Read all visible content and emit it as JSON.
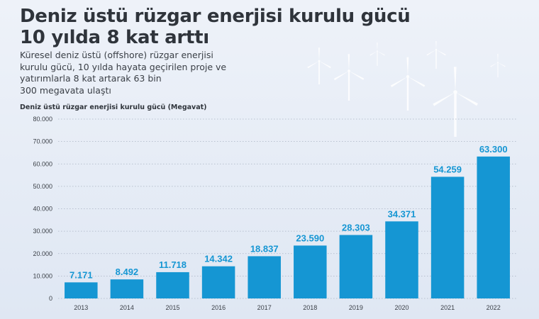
{
  "header": {
    "title_line1": "Deniz üstü rüzgar enerjisi kurulu gücü",
    "title_line2": "10 yılda 8 kat arttı",
    "subtitle_lines": [
      "Küresel deniz üstü (offshore) rüzgar enerjisi",
      "kurulu gücü, 10 yılda hayata geçirilen proje ve",
      "yatırımlarla 8 kat artarak 63 bin",
      "300 megavata ulaştı"
    ]
  },
  "colors": {
    "bar": "#1596d3",
    "label": "#1596d3",
    "axis_text": "#3a3f46",
    "grid": "#a9b3c2"
  },
  "decor": {
    "icon": "wind-turbine-icon"
  },
  "chart_data": {
    "type": "bar",
    "title": "",
    "xlabel": "",
    "ylabel": "Deniz üstü rüzgar enerjisi kurulu gücü (Megavat)",
    "categories": [
      "2013",
      "2014",
      "2015",
      "2016",
      "2017",
      "2018",
      "2019",
      "2020",
      "2021",
      "2022"
    ],
    "values": [
      7171,
      8492,
      11718,
      14342,
      18837,
      23590,
      28303,
      34371,
      54259,
      63300
    ],
    "value_labels": [
      "7.171",
      "8.492",
      "11.718",
      "14.342",
      "18.837",
      "23.590",
      "28.303",
      "34.371",
      "54.259",
      "63.300"
    ],
    "yticks": [
      0,
      10000,
      20000,
      30000,
      40000,
      50000,
      60000,
      70000,
      80000
    ],
    "ytick_labels": [
      "0",
      "10.000",
      "20.000",
      "30.000",
      "40.000",
      "50.000",
      "60.000",
      "70.000",
      "80.000"
    ],
    "ylim": [
      0,
      80000
    ],
    "grid": true,
    "legend": "none"
  }
}
